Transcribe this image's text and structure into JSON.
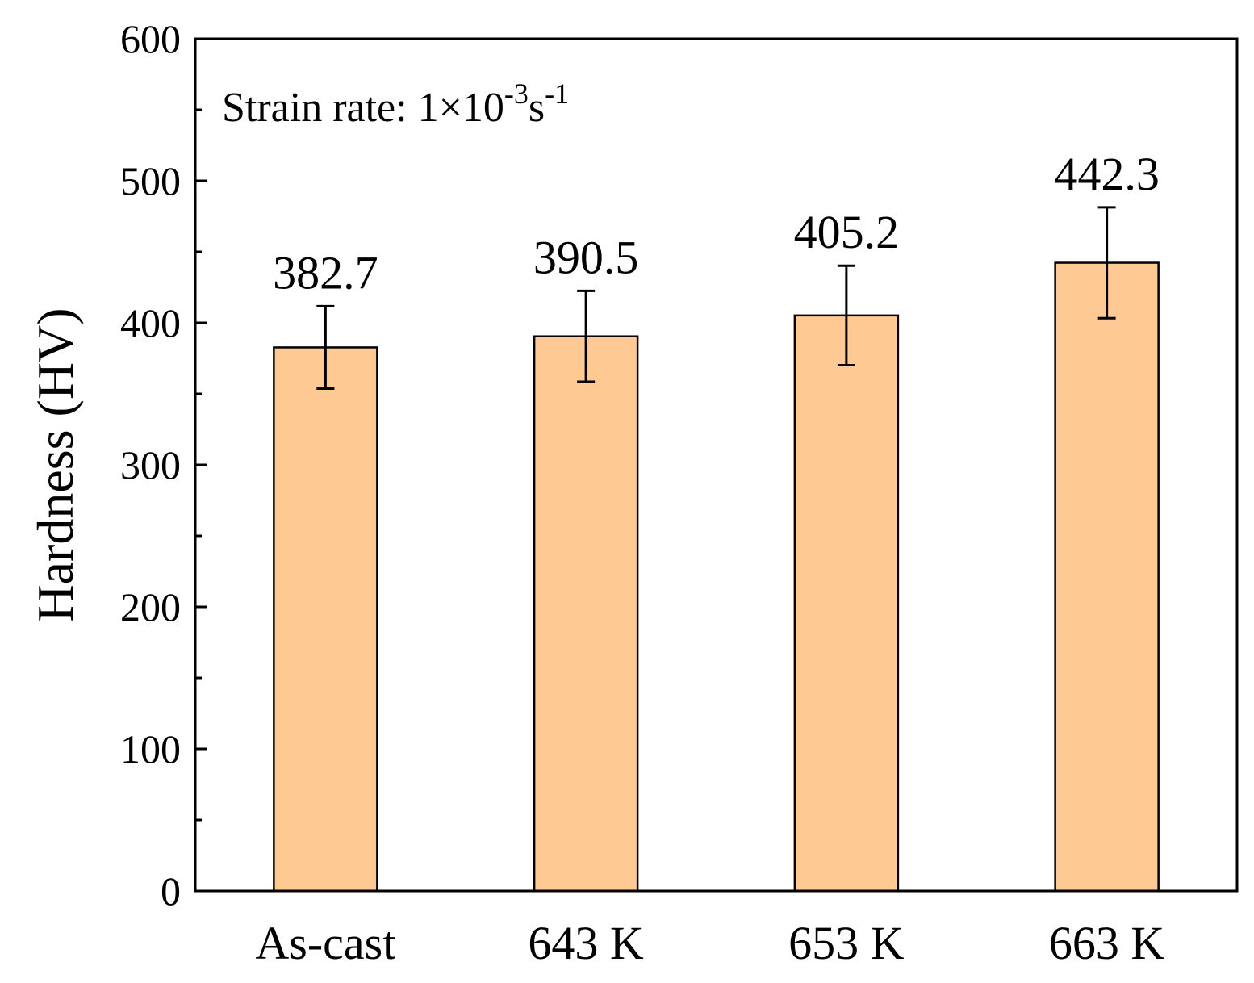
{
  "chart_data": {
    "type": "bar",
    "title": "",
    "xlabel": "",
    "ylabel": "Hardness (HV)",
    "ylim": [
      0,
      600
    ],
    "yticks": [
      0,
      100,
      200,
      300,
      400,
      500,
      600
    ],
    "categories": [
      "As-cast",
      "643 K",
      "653 K",
      "663 K"
    ],
    "values": [
      382.7,
      390.5,
      405.2,
      442.3
    ],
    "error": [
      29,
      32,
      35,
      39
    ],
    "value_labels": [
      "382.7",
      "390.5",
      "405.2",
      "442.3"
    ],
    "bar_color": "#FFC994",
    "grid": false,
    "legend": "none",
    "annotation": {
      "prefix": "Strain rate: 1×10",
      "exp1": "-3",
      "unit": "s",
      "exp2": "-1"
    }
  }
}
